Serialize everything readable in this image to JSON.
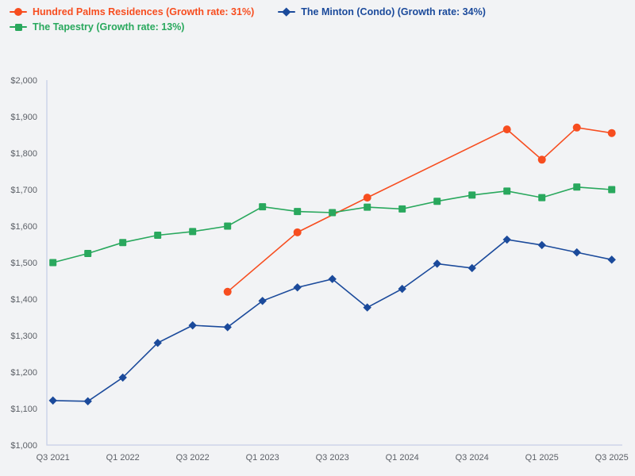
{
  "colors": {
    "background": "#F2F3F5",
    "axis_line": "#C7CFE6",
    "tick_text": "#5B5F66"
  },
  "chart_data": {
    "type": "line",
    "title": "",
    "xlabel": "",
    "ylabel": "",
    "ylim": [
      1000,
      2000
    ],
    "y_tick_step": 100,
    "y_tick_labels": [
      "$2,000",
      "$1,900",
      "$1,800",
      "$1,700",
      "$1,600",
      "$1,500",
      "$1,400",
      "$1,300",
      "$1,200",
      "$1,100",
      "$1,000"
    ],
    "categories": [
      "Q3 2021",
      "Q4 2021",
      "Q1 2022",
      "Q2 2022",
      "Q3 2022",
      "Q4 2022",
      "Q1 2023",
      "Q2 2023",
      "Q3 2023",
      "Q4 2023",
      "Q1 2024",
      "Q2 2024",
      "Q3 2024",
      "Q4 2024",
      "Q1 2025",
      "Q2 2025",
      "Q3 2025"
    ],
    "x_tick_labels": [
      "Q3 2021",
      "Q1 2022",
      "Q3 2022",
      "Q1 2023",
      "Q3 2023",
      "Q1 2024",
      "Q3 2024",
      "Q1 2025",
      "Q3 2025"
    ],
    "x_tick_indices": [
      0,
      2,
      4,
      6,
      8,
      10,
      12,
      14,
      16
    ],
    "grid": "off",
    "legend_position": "top-left",
    "series": [
      {
        "name": "Hundred Palms Residences (Growth rate: 31%)",
        "slug": "hundred-palms-residences",
        "color": "#F74D1F",
        "marker": "circle",
        "values": [
          null,
          null,
          null,
          null,
          null,
          1420,
          null,
          1583,
          null,
          1678,
          null,
          null,
          null,
          1865,
          1782,
          1870,
          1855
        ]
      },
      {
        "name": "The Minton (Condo) (Growth rate: 34%)",
        "slug": "the-minton-condo",
        "color": "#1B4A9B",
        "marker": "diamond",
        "values": [
          1122,
          1120,
          1185,
          1280,
          1328,
          1323,
          1395,
          1432,
          1455,
          1377,
          1428,
          1497,
          1485,
          1563,
          1548,
          1528,
          1508
        ]
      },
      {
        "name": "The Tapestry (Growth rate: 13%)",
        "slug": "the-tapestry",
        "color": "#29A85D",
        "marker": "square",
        "values": [
          1500,
          1525,
          1555,
          1575,
          1585,
          1600,
          1653,
          1640,
          1637,
          1652,
          1647,
          1668,
          1685,
          1696,
          1678,
          1707,
          1700
        ]
      }
    ]
  }
}
